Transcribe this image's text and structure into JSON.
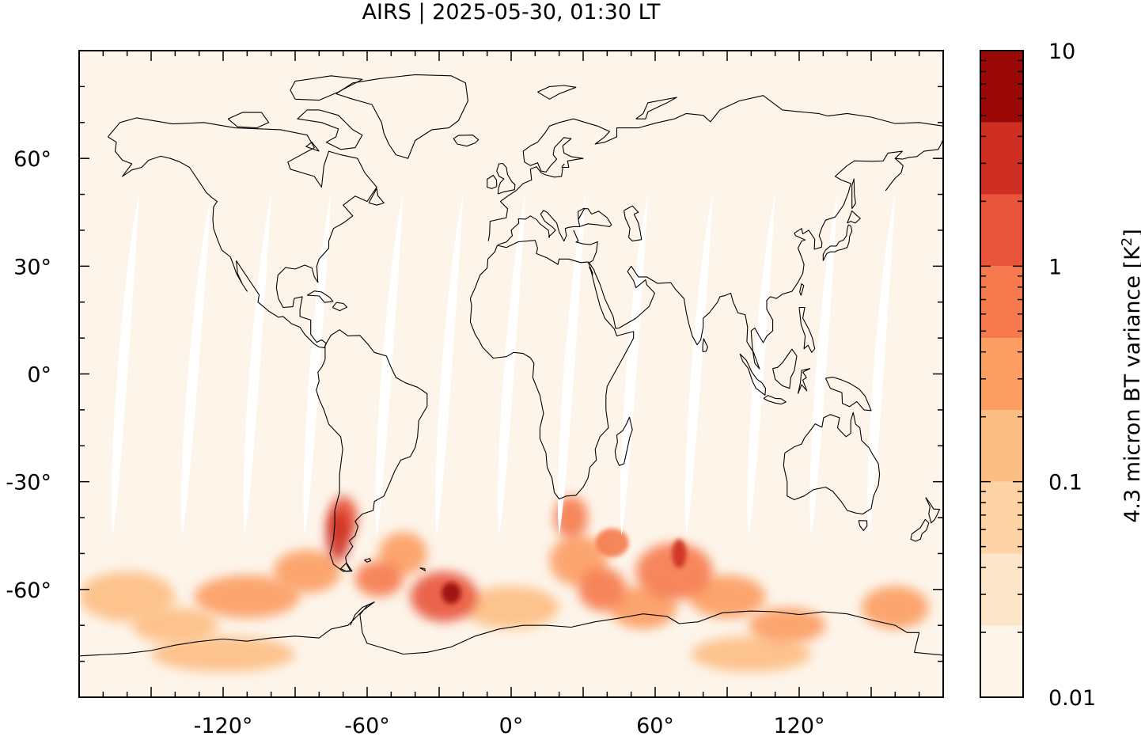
{
  "title": "AIRS | 2025-05-30, 01:30 LT",
  "colorbar": {
    "label_main": "4.3 micron BT variance [K",
    "label_sup": "2",
    "label_close": "]",
    "scale": "log",
    "range": [
      0.01,
      10
    ],
    "tick_values": [
      10,
      1,
      0.1,
      0.01
    ],
    "tick_labels": [
      "10",
      "1",
      "0.1",
      "0.01"
    ],
    "levels": [
      0.01,
      0.0215,
      0.0464,
      0.1,
      0.215,
      0.464,
      1,
      2.15,
      4.64,
      10
    ],
    "colors": [
      "#fdf5ea",
      "#fde5ca",
      "#fdd3a6",
      "#fdbe84",
      "#fc9d62",
      "#f67a4d",
      "#e8553b",
      "#cf2f22",
      "#9b0808"
    ]
  },
  "chart_data": {
    "type": "heatmap",
    "projection": "equirectangular",
    "title": "AIRS | 2025-05-30, 01:30 LT",
    "xlim": [
      -180,
      180
    ],
    "ylim": [
      -90,
      90
    ],
    "x_ticks": [
      -120,
      -60,
      0,
      60,
      120
    ],
    "x_tick_labels": [
      "-120°",
      "-60°",
      "0°",
      "60°",
      "120°"
    ],
    "y_ticks": [
      60,
      30,
      0,
      -30,
      -60
    ],
    "y_tick_labels": [
      "60°",
      "30°",
      "0°",
      "-30°",
      "-60°"
    ],
    "colorbar_label": "4.3 micron BT variance [K²]",
    "color_scale": "log",
    "value_range": [
      0.01,
      10
    ],
    "background_value": 0.015,
    "swath_gaps": [
      {
        "lon_top": -155,
        "lon_bottom": -168,
        "lat_top": 50,
        "lat_bottom": -45
      },
      {
        "lon_top": -125,
        "lon_bottom": -139,
        "lat_top": 50,
        "lat_bottom": -45
      },
      {
        "lon_top": -100,
        "lon_bottom": -113,
        "lat_top": 50,
        "lat_bottom": -45
      },
      {
        "lon_top": -75,
        "lon_bottom": -88,
        "lat_top": 50,
        "lat_bottom": -45
      },
      {
        "lon_top": -45,
        "lon_bottom": -58,
        "lat_top": 50,
        "lat_bottom": -45
      },
      {
        "lon_top": -20,
        "lon_bottom": -33,
        "lat_top": 50,
        "lat_bottom": -45
      },
      {
        "lon_top": 6,
        "lon_bottom": -7,
        "lat_top": 50,
        "lat_bottom": -45
      },
      {
        "lon_top": 31,
        "lon_bottom": 18,
        "lat_top": 50,
        "lat_bottom": -45
      },
      {
        "lon_top": 57,
        "lon_bottom": 44,
        "lat_top": 50,
        "lat_bottom": -45
      },
      {
        "lon_top": 84,
        "lon_bottom": 71,
        "lat_top": 50,
        "lat_bottom": -45
      },
      {
        "lon_top": 110,
        "lon_bottom": 97,
        "lat_top": 50,
        "lat_bottom": -45
      },
      {
        "lon_top": 136,
        "lon_bottom": 123,
        "lat_top": 50,
        "lat_bottom": -45
      },
      {
        "lon_top": 160,
        "lon_bottom": 147,
        "lat_top": 50,
        "lat_bottom": -45
      }
    ],
    "hotspots": [
      {
        "lon": -72,
        "lat": -45,
        "rx": 5,
        "ry": 7,
        "value": 4.5
      },
      {
        "lon": -70,
        "lat": -40,
        "rx": 6,
        "ry": 6,
        "value": 1.2
      },
      {
        "lon": -28,
        "lat": -62,
        "rx": 14,
        "ry": 7,
        "value": 1.5
      },
      {
        "lon": -25,
        "lat": -61,
        "rx": 4,
        "ry": 3,
        "value": 5.0
      },
      {
        "lon": -55,
        "lat": -57,
        "rx": 10,
        "ry": 5,
        "value": 0.6
      },
      {
        "lon": -45,
        "lat": -50,
        "rx": 10,
        "ry": 6,
        "value": 0.4
      },
      {
        "lon": -85,
        "lat": -55,
        "rx": 14,
        "ry": 6,
        "value": 0.35
      },
      {
        "lon": -110,
        "lat": -62,
        "rx": 22,
        "ry": 6,
        "value": 0.25
      },
      {
        "lon": -160,
        "lat": -62,
        "rx": 20,
        "ry": 7,
        "value": 0.2
      },
      {
        "lon": -120,
        "lat": -78,
        "rx": 30,
        "ry": 5,
        "value": 0.12
      },
      {
        "lon": 25,
        "lat": -40,
        "rx": 7,
        "ry": 6,
        "value": 0.6
      },
      {
        "lon": 28,
        "lat": -52,
        "rx": 12,
        "ry": 7,
        "value": 0.4
      },
      {
        "lon": 38,
        "lat": -60,
        "rx": 10,
        "ry": 6,
        "value": 0.55
      },
      {
        "lon": 42,
        "lat": -47,
        "rx": 7,
        "ry": 4,
        "value": 0.9
      },
      {
        "lon": 70,
        "lat": -50,
        "rx": 3,
        "ry": 4,
        "value": 3.5
      },
      {
        "lon": 68,
        "lat": -55,
        "rx": 16,
        "ry": 8,
        "value": 0.5
      },
      {
        "lon": 55,
        "lat": -65,
        "rx": 14,
        "ry": 6,
        "value": 0.35
      },
      {
        "lon": 90,
        "lat": -62,
        "rx": 16,
        "ry": 6,
        "value": 0.3
      },
      {
        "lon": 115,
        "lat": -70,
        "rx": 16,
        "ry": 5,
        "value": 0.25
      },
      {
        "lon": 160,
        "lat": -65,
        "rx": 14,
        "ry": 6,
        "value": 0.45
      },
      {
        "lon": 100,
        "lat": -78,
        "rx": 25,
        "ry": 5,
        "value": 0.2
      },
      {
        "lon": 0,
        "lat": -65,
        "rx": 20,
        "ry": 6,
        "value": 0.15
      },
      {
        "lon": -140,
        "lat": -70,
        "rx": 18,
        "ry": 5,
        "value": 0.15
      }
    ],
    "coastlines": [
      "North America",
      "Greenland",
      "South America",
      "Europe",
      "Africa",
      "Asia",
      "Australia",
      "Antarctica",
      "Japan",
      "Great Britain",
      "New Zealand",
      "Madagascar"
    ]
  }
}
